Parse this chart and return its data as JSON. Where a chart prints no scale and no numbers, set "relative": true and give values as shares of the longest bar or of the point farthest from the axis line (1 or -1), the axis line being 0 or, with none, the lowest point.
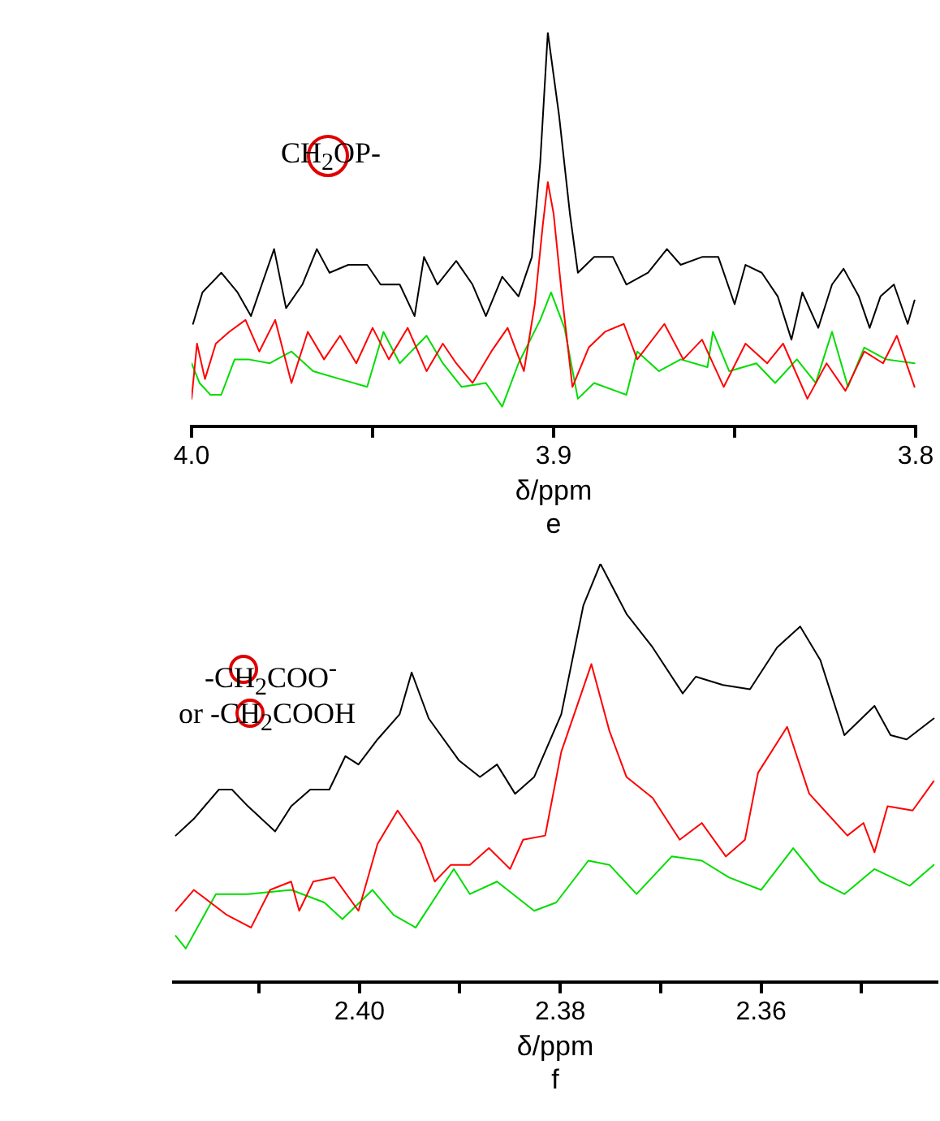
{
  "chart_data": [
    {
      "type": "line",
      "relative": true,
      "title": "e",
      "xlabel": "δ/ppm",
      "annotations": [
        "CH$_{2}$OP-"
      ],
      "xlim": [
        4.0,
        3.8
      ],
      "xticks": [
        {
          "value": 4,
          "label": "4.0"
        },
        {
          "value": 3.95,
          "label": null
        },
        3.9,
        {
          "value": 3.85,
          "label": null
        },
        3.8
      ],
      "grid": false,
      "legend": false,
      "marker": "none",
      "line_style": "solid",
      "series": [
        {
          "color": "#000000",
          "x": [
            3.9996,
            3.997,
            3.9918,
            3.9873,
            3.9836,
            3.9806,
            3.9772,
            3.9739,
            3.9694,
            3.9654,
            3.9619,
            3.9567,
            3.9515,
            3.9478,
            3.9425,
            3.9384,
            3.9358,
            3.9321,
            3.9269,
            3.9224,
            3.9187,
            3.9142,
            3.9097,
            3.906,
            3.9037,
            3.9016,
            3.8985,
            3.8955,
            3.8933,
            3.8888,
            3.8836,
            3.8799,
            3.8739,
            3.8687,
            3.8649,
            3.859,
            3.8545,
            3.85,
            3.847,
            3.8425,
            3.8381,
            3.8343,
            3.8313,
            3.8269,
            3.8231,
            3.8199,
            3.8157,
            3.8127,
            3.8097,
            3.806,
            3.8022,
            3.8003
          ],
          "values": [
            0.26,
            0.34,
            0.39,
            0.34,
            0.28,
            0.36,
            0.45,
            0.3,
            0.36,
            0.45,
            0.39,
            0.41,
            0.41,
            0.36,
            0.36,
            0.28,
            0.43,
            0.36,
            0.42,
            0.36,
            0.28,
            0.38,
            0.33,
            0.43,
            0.67,
            1.0,
            0.79,
            0.54,
            0.39,
            0.43,
            0.43,
            0.36,
            0.39,
            0.45,
            0.41,
            0.43,
            0.43,
            0.31,
            0.41,
            0.39,
            0.33,
            0.22,
            0.34,
            0.25,
            0.36,
            0.4,
            0.33,
            0.25,
            0.33,
            0.36,
            0.26,
            0.32
          ]
        },
        {
          "color": "#ff0000",
          "x": [
            4.0,
            3.9985,
            3.9963,
            3.9933,
            3.9896,
            3.9851,
            3.9813,
            3.9769,
            3.9724,
            3.9679,
            3.9634,
            3.959,
            3.9545,
            3.95,
            3.9455,
            3.9403,
            3.9351,
            3.9306,
            3.9269,
            3.9224,
            3.9172,
            3.9127,
            3.9082,
            3.9052,
            3.903,
            3.9016,
            3.9,
            3.8978,
            3.8948,
            3.8903,
            3.8858,
            3.8806,
            3.8769,
            3.8694,
            3.8642,
            3.859,
            3.853,
            3.847,
            3.841,
            3.8366,
            3.8299,
            3.8246,
            3.8194,
            3.8142,
            3.809,
            3.8052,
            3.8003
          ],
          "values": [
            0.07,
            0.21,
            0.12,
            0.21,
            0.24,
            0.27,
            0.19,
            0.27,
            0.11,
            0.24,
            0.17,
            0.23,
            0.16,
            0.25,
            0.17,
            0.25,
            0.14,
            0.21,
            0.16,
            0.11,
            0.19,
            0.25,
            0.14,
            0.31,
            0.51,
            0.62,
            0.54,
            0.34,
            0.1,
            0.2,
            0.24,
            0.26,
            0.17,
            0.26,
            0.17,
            0.22,
            0.1,
            0.21,
            0.16,
            0.21,
            0.07,
            0.16,
            0.09,
            0.19,
            0.16,
            0.23,
            0.1
          ]
        },
        {
          "color": "#00dd00",
          "x": [
            4.0,
            3.9978,
            3.9948,
            3.9918,
            3.9881,
            3.9843,
            3.9784,
            3.9724,
            3.9664,
            3.959,
            3.9515,
            3.947,
            3.9425,
            3.9351,
            3.9306,
            3.9254,
            3.9187,
            3.9142,
            3.9097,
            3.9037,
            3.9007,
            3.897,
            3.8933,
            3.8888,
            3.8799,
            3.8769,
            3.8709,
            3.8649,
            3.8575,
            3.856,
            3.8515,
            3.844,
            3.8388,
            3.8328,
            3.8276,
            3.8231,
            3.8187,
            3.8142,
            3.8082,
            3.8003
          ],
          "values": [
            0.16,
            0.11,
            0.08,
            0.08,
            0.17,
            0.17,
            0.16,
            0.19,
            0.14,
            0.12,
            0.1,
            0.24,
            0.16,
            0.23,
            0.16,
            0.1,
            0.11,
            0.05,
            0.16,
            0.27,
            0.34,
            0.25,
            0.07,
            0.11,
            0.08,
            0.19,
            0.14,
            0.17,
            0.15,
            0.24,
            0.14,
            0.16,
            0.11,
            0.17,
            0.11,
            0.24,
            0.1,
            0.2,
            0.17,
            0.16
          ]
        }
      ]
    },
    {
      "type": "line",
      "relative": true,
      "title": "f",
      "xlabel": "δ/ppm",
      "annotations": [
        "-CH$_{2}$COO$^{-}$",
        "or -CH$_{2}$COOH"
      ],
      "xlim": [
        2.4185,
        2.3425
      ],
      "xticks": [
        {
          "value": 2.41,
          "label": null
        },
        {
          "value": 2.4,
          "label": "2.40"
        },
        {
          "value": 2.39,
          "label": null
        },
        2.38,
        {
          "value": 2.37,
          "label": null
        },
        2.36,
        {
          "value": 2.35,
          "label": null
        }
      ],
      "grid": false,
      "legend": false,
      "marker": "none",
      "line_style": "solid",
      "series": [
        {
          "color": "#000000",
          "x": [
            2.4183,
            2.4165,
            2.414,
            2.4127,
            2.4111,
            2.4084,
            2.4068,
            2.4049,
            2.403,
            2.4014,
            2.4001,
            2.3982,
            2.396,
            2.3948,
            2.3931,
            2.3901,
            2.388,
            2.3863,
            2.3845,
            2.3826,
            2.3799,
            2.3777,
            2.376,
            2.3734,
            2.3708,
            2.3678,
            2.3665,
            2.3638,
            2.3611,
            2.3584,
            2.3561,
            2.3541,
            2.3517,
            2.3487,
            2.3471,
            2.3455,
            2.3428
          ],
          "values": [
            0.35,
            0.39,
            0.46,
            0.46,
            0.42,
            0.36,
            0.42,
            0.46,
            0.46,
            0.54,
            0.52,
            0.58,
            0.64,
            0.74,
            0.63,
            0.53,
            0.49,
            0.52,
            0.45,
            0.49,
            0.64,
            0.9,
            1.0,
            0.88,
            0.8,
            0.69,
            0.73,
            0.71,
            0.7,
            0.8,
            0.85,
            0.77,
            0.59,
            0.66,
            0.59,
            0.58,
            0.63
          ]
        },
        {
          "color": "#ff0000",
          "x": [
            2.4183,
            2.4165,
            2.4132,
            2.4108,
            2.4089,
            2.4068,
            2.406,
            2.4046,
            2.4025,
            2.4001,
            2.3982,
            2.3962,
            2.3939,
            2.3925,
            2.3909,
            2.389,
            2.3871,
            2.385,
            2.3837,
            2.3815,
            2.3799,
            2.3769,
            2.3751,
            2.3734,
            2.3708,
            2.3681,
            2.3659,
            2.3635,
            2.3616,
            2.3603,
            2.3574,
            2.3552,
            2.3514,
            2.3498,
            2.3487,
            2.3474,
            2.3449,
            2.3428
          ],
          "values": [
            0.17,
            0.22,
            0.16,
            0.13,
            0.22,
            0.24,
            0.17,
            0.24,
            0.25,
            0.17,
            0.33,
            0.41,
            0.33,
            0.24,
            0.28,
            0.28,
            0.32,
            0.27,
            0.34,
            0.35,
            0.55,
            0.76,
            0.6,
            0.49,
            0.44,
            0.34,
            0.38,
            0.3,
            0.34,
            0.5,
            0.61,
            0.45,
            0.35,
            0.38,
            0.31,
            0.42,
            0.41,
            0.48
          ]
        },
        {
          "color": "#00dd00",
          "x": [
            2.4183,
            2.4173,
            2.4143,
            2.4111,
            2.4068,
            2.4035,
            2.4017,
            2.3987,
            2.3966,
            2.3944,
            2.3906,
            2.389,
            2.3863,
            2.3826,
            2.3804,
            2.3772,
            2.3751,
            2.3724,
            2.3689,
            2.3659,
            2.3632,
            2.36,
            2.3568,
            2.3541,
            2.3517,
            2.3487,
            2.3452,
            2.3428
          ],
          "values": [
            0.11,
            0.08,
            0.21,
            0.21,
            0.22,
            0.19,
            0.15,
            0.22,
            0.16,
            0.13,
            0.27,
            0.21,
            0.24,
            0.17,
            0.19,
            0.29,
            0.28,
            0.21,
            0.3,
            0.29,
            0.25,
            0.22,
            0.32,
            0.24,
            0.21,
            0.27,
            0.23,
            0.28
          ]
        }
      ]
    }
  ]
}
